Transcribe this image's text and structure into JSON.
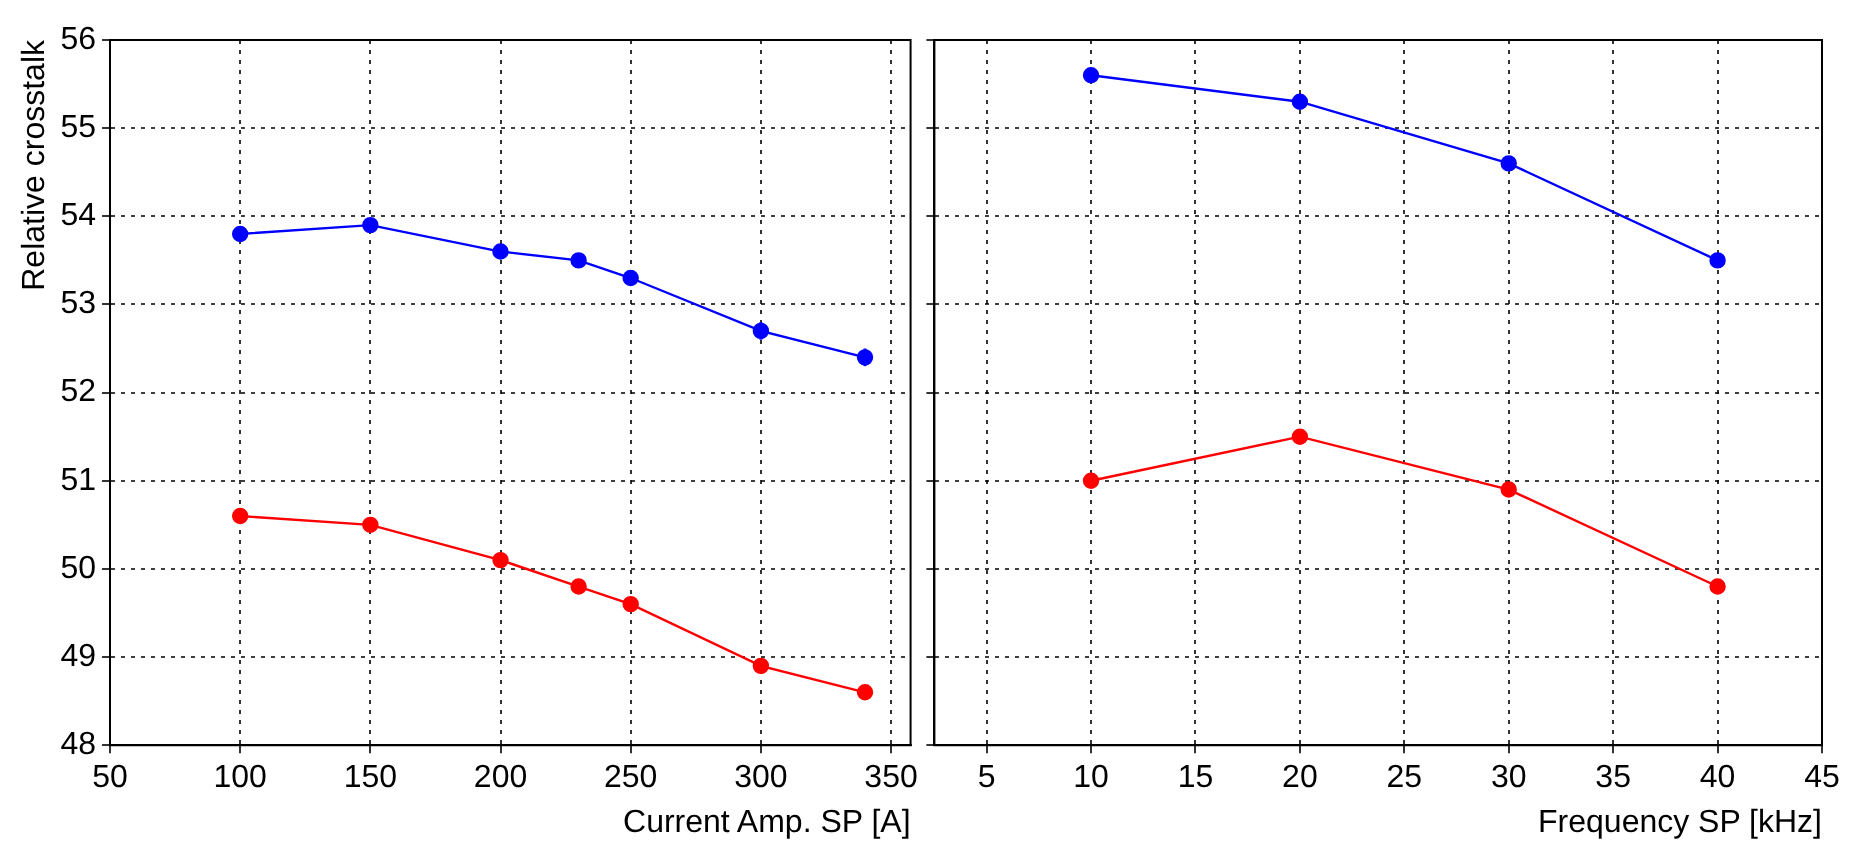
{
  "chart_data": [
    {
      "type": "line",
      "ylabel": "Relative crosstalk",
      "xlabel": "Current Amp. SP [A]",
      "x": [
        100,
        150,
        200,
        230,
        250,
        300,
        340
      ],
      "xlim": [
        50,
        357.5
      ],
      "xticks": [
        50,
        100,
        150,
        200,
        250,
        300,
        350
      ],
      "ylim": [
        48,
        56
      ],
      "yticks": [
        48,
        49,
        50,
        51,
        52,
        53,
        54,
        55,
        56
      ],
      "grid": true,
      "legend": false,
      "marker": "circle",
      "series": [
        {
          "color": "#0000ff",
          "values": [
            53.8,
            53.9,
            53.6,
            53.5,
            53.3,
            52.7,
            52.4
          ],
          "errors": [
            null,
            null,
            null,
            null,
            null,
            0.1,
            0.1
          ]
        },
        {
          "color": "#ff0000",
          "values": [
            50.6,
            50.5,
            50.1,
            49.8,
            49.6,
            48.9,
            48.6
          ]
        }
      ]
    },
    {
      "type": "line",
      "xlabel": "Frequency SP [kHz]",
      "x": [
        10,
        20,
        30,
        40
      ],
      "xlim": [
        2.5,
        45
      ],
      "xticks": [
        5,
        10,
        15,
        20,
        25,
        30,
        35,
        40,
        45
      ],
      "ylim": [
        48,
        56
      ],
      "yticks": [
        48,
        49,
        50,
        51,
        52,
        53,
        54,
        55,
        56
      ],
      "grid": true,
      "legend": false,
      "marker": "circle",
      "tick_labels": "x",
      "series": [
        {
          "color": "#0000ff",
          "values": [
            55.6,
            55.3,
            54.6,
            53.5
          ]
        },
        {
          "color": "#ff0000",
          "values": [
            51.0,
            51.5,
            50.9,
            49.8
          ]
        }
      ]
    }
  ]
}
